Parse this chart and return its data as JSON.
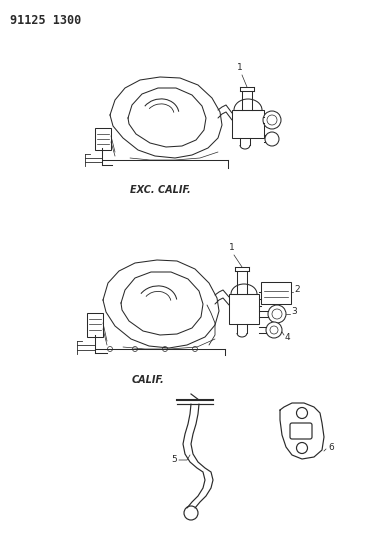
{
  "title": "91125 1300",
  "bg_color": "#ffffff",
  "line_color": "#2a2a2a",
  "fig_width": 3.9,
  "fig_height": 5.33,
  "dpi": 100,
  "exc_label": "EXC. CALIF.",
  "cal_label": "CALIF.",
  "parts": [
    "1",
    "2",
    "3",
    "4",
    "5",
    "6"
  ]
}
